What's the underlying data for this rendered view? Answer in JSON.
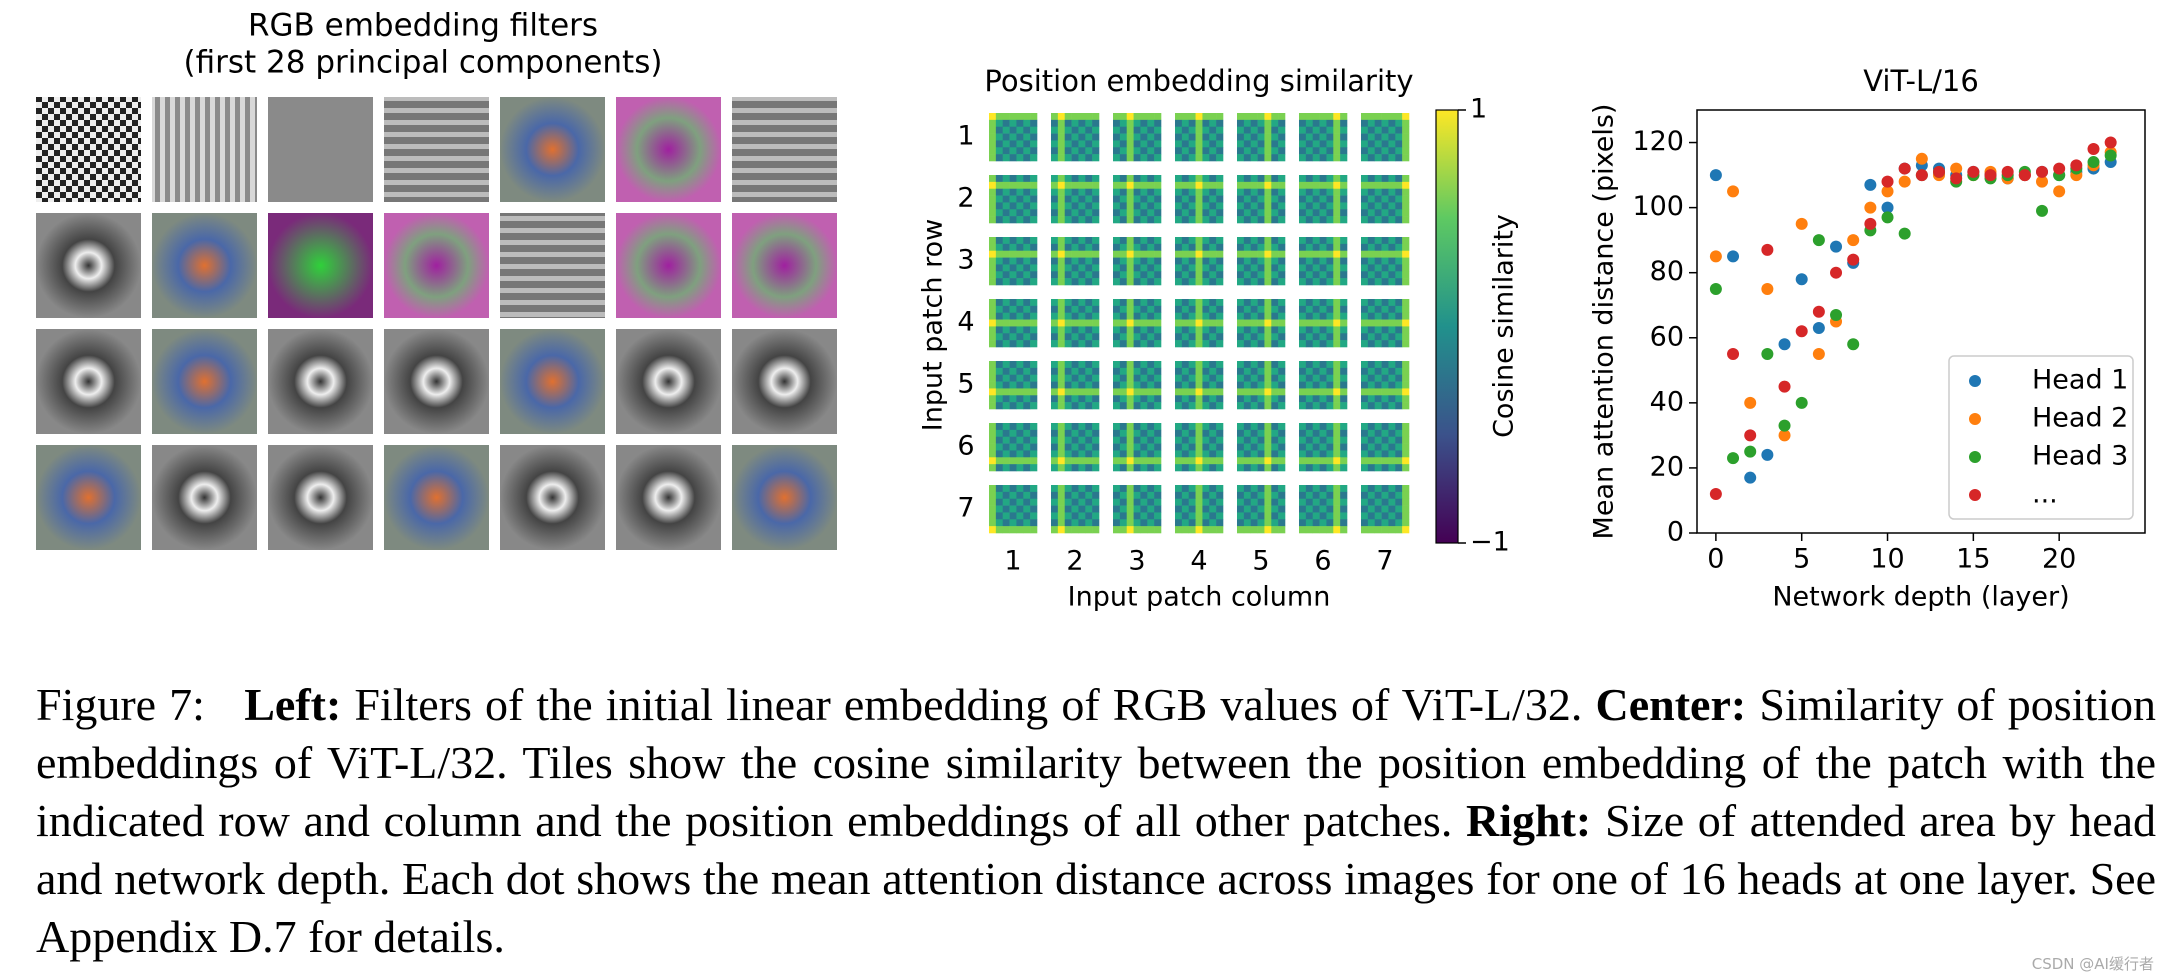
{
  "filters": {
    "title": "RGB embedding filters",
    "subtitle": "(first 28 principal components)"
  },
  "position_similarity": {
    "title": "Position embedding similarity",
    "row_labels": [
      1,
      2,
      3,
      4,
      5,
      6,
      7
    ],
    "col_labels": [
      1,
      2,
      3,
      4,
      5,
      6,
      7
    ],
    "xlabel": "Input patch column",
    "ylabel": "Input patch row",
    "colorbar_label": "Cosine similarity",
    "colorbar_ticks": [
      {
        "value": 1,
        "label": "1"
      },
      {
        "value": -1,
        "label": "−1"
      }
    ]
  },
  "chart_data": {
    "type": "scatter",
    "title": "ViT-L/16",
    "xlabel": "Network depth (layer)",
    "ylabel": "Mean attention distance (pixels)",
    "x": [
      0,
      1,
      2,
      3,
      4,
      5,
      6,
      7,
      8,
      9,
      10,
      11,
      12,
      13,
      14,
      15,
      16,
      17,
      18,
      19,
      20,
      21,
      22,
      23
    ],
    "series": [
      {
        "name": "Head 1",
        "color": "#1f77b4",
        "values": [
          110,
          85,
          17,
          24,
          58,
          78,
          63,
          88,
          83,
          107,
          100,
          112,
          113,
          112,
          110,
          111,
          110,
          109,
          110,
          111,
          110,
          111,
          112,
          114
        ]
      },
      {
        "name": "Head 2",
        "color": "#ff7f0e",
        "values": [
          85,
          105,
          40,
          75,
          30,
          95,
          55,
          65,
          90,
          100,
          105,
          108,
          115,
          110,
          112,
          110,
          111,
          109,
          110,
          108,
          105,
          110,
          113,
          117
        ]
      },
      {
        "name": "Head 3",
        "color": "#2ca02c",
        "values": [
          75,
          23,
          25,
          55,
          33,
          40,
          90,
          67,
          58,
          93,
          97,
          92,
          110,
          111,
          108,
          110,
          109,
          110,
          111,
          99,
          110,
          112,
          114,
          116
        ]
      },
      {
        "name": "...",
        "color": "#d62728",
        "values": [
          12,
          55,
          30,
          87,
          45,
          62,
          68,
          80,
          84,
          95,
          108,
          112,
          110,
          111,
          109,
          111,
          110,
          111,
          110,
          111,
          112,
          113,
          118,
          120
        ]
      }
    ],
    "xlim": [
      -1.1,
      25
    ],
    "ylim": [
      0,
      130
    ],
    "xticks": [
      0,
      5,
      10,
      15,
      20
    ],
    "yticks": [
      0,
      20,
      40,
      60,
      80,
      100,
      120
    ],
    "legend": "lower right"
  },
  "caption": {
    "label": "Figure 7:",
    "left_head": "Left:",
    "left_text": "Filters of the initial linear embedding of RGB values of ViT-L/32.",
    "center_head": "Center:",
    "center_text": "Similarity of position embeddings of ViT-L/32. Tiles show the cosine similarity between the position embedding of the patch with the indicated row and column and the position embeddings of all other patches.",
    "right_head": "Right:",
    "right_text": "Size of attended area by head and network depth. Each dot shows the mean attention distance across images for one of 16 heads at one layer. See Appendix D.7 for details."
  },
  "watermark": "CSDN @AI缓行者"
}
